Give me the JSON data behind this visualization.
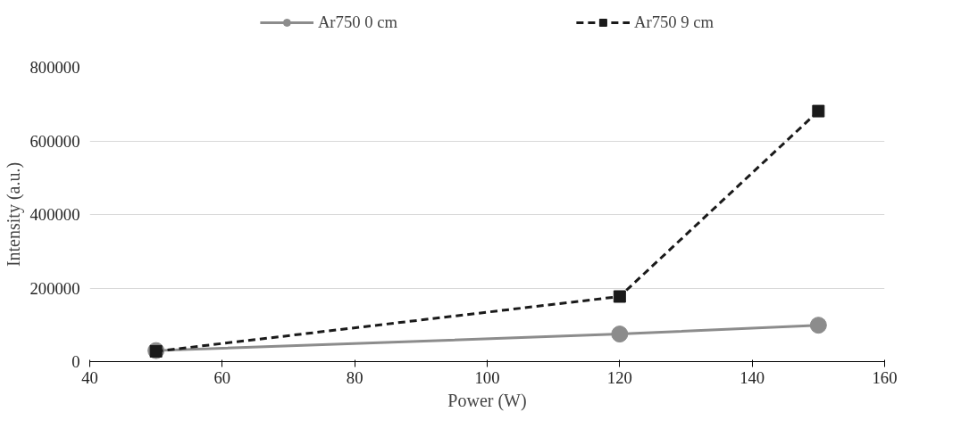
{
  "chart_data": {
    "type": "line",
    "xlabel": "Power (W)",
    "ylabel": "Intensity (a.u.)",
    "x": [
      50,
      120,
      150
    ],
    "series": [
      {
        "name": "Ar750 0 cm",
        "color": "#8c8c8c",
        "values": [
          30000,
          75000,
          99000
        ],
        "marker": "circle",
        "line_style": "solid"
      },
      {
        "name": "Ar750 9 cm",
        "color": "#1a1a1a",
        "values": [
          28000,
          177000,
          681000
        ],
        "marker": "square",
        "line_style": "dashed"
      }
    ],
    "xlim": [
      40,
      160
    ],
    "xticks": [
      40,
      60,
      80,
      100,
      120,
      140,
      160
    ],
    "ylim": [
      0,
      800000
    ],
    "yticks": [
      0,
      200000,
      400000,
      600000,
      800000
    ],
    "grid": "y",
    "legend": "top"
  }
}
